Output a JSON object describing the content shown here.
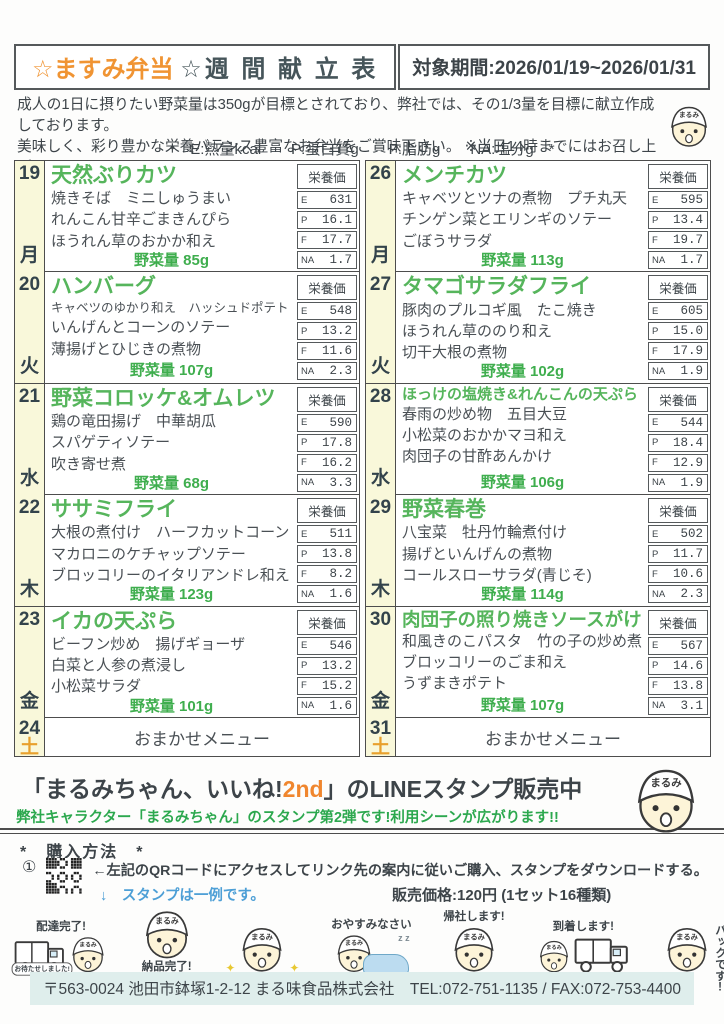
{
  "header": {
    "title_brand": "☆ますみ弁当",
    "title_rest": "☆週 間 献 立 表",
    "period": "対象期間:2026/01/19~2026/01/31"
  },
  "intro": {
    "line1": "成人の1日に摂りたい野菜量は350gが目標とされており、弊社では、その1/3量を目標に献立作成しております。",
    "line2": "美味しく、彩り豊かな栄養バランス豊富なお弁当をご賞味下さい。 ※当日14時までにはお召し上がりください。"
  },
  "legend": "*　E:熱量kcal　　P:蛋白質g　　F:脂肪g　　NA:塩分g　*",
  "labels": {
    "nutrition_header": "栄養価",
    "veg_label": "野菜量",
    "e": "E",
    "p": "P",
    "f": "F",
    "na": "NA"
  },
  "days": {
    "left": [
      {
        "date": "19",
        "dow": "月",
        "title": "天然ぶりカツ",
        "items": [
          "焼きそば　ミニしゅうまい",
          "れんこん甘辛ごまきんぴら",
          "ほうれん草のおかか和え"
        ],
        "veg": "85g",
        "e": "631",
        "p": "16.1",
        "f": "17.7",
        "na": "1.7"
      },
      {
        "date": "20",
        "dow": "火",
        "title": "ハンバーグ",
        "items": [
          "キャベツのゆかり和え　ハッシュドポテト",
          "いんげんとコーンのソテー",
          "薄揚げとひじきの煮物"
        ],
        "veg": "107g",
        "e": "548",
        "p": "13.2",
        "f": "11.6",
        "na": "2.3"
      },
      {
        "date": "21",
        "dow": "水",
        "title": "野菜コロッケ&オムレツ",
        "items": [
          "鶏の竜田揚げ　中華胡瓜",
          "スパゲティソテー",
          "吹き寄せ煮"
        ],
        "veg": "68g",
        "e": "590",
        "p": "17.8",
        "f": "16.2",
        "na": "3.3"
      },
      {
        "date": "22",
        "dow": "木",
        "title": "ササミフライ",
        "items": [
          "大根の煮付け　ハーフカットコーン",
          "マカロニのケチャップソテー",
          "ブロッコリーのイタリアンドレ和え"
        ],
        "veg": "123g",
        "e": "511",
        "p": "13.8",
        "f": "8.2",
        "na": "1.6"
      },
      {
        "date": "23",
        "dow": "金",
        "title": "イカの天ぷら",
        "items": [
          "ビーフン炒め　揚げギョーザ",
          "白菜と人参の煮浸し",
          "小松菜サラダ"
        ],
        "veg": "101g",
        "e": "546",
        "p": "13.2",
        "f": "15.2",
        "na": "1.6"
      },
      {
        "date": "24",
        "dow": "土",
        "omakase": "おまかせメニュー"
      }
    ],
    "right": [
      {
        "date": "26",
        "dow": "月",
        "title": "メンチカツ",
        "items": [
          "キャベツとツナの煮物　プチ丸天",
          "チンゲン菜とエリンギのソテー",
          "ごぼうサラダ"
        ],
        "veg": "113g",
        "e": "595",
        "p": "13.4",
        "f": "19.7",
        "na": "1.7"
      },
      {
        "date": "27",
        "dow": "火",
        "title": "タマゴサラダフライ",
        "items": [
          "豚肉のプルコギ風　たこ焼き",
          "ほうれん草ののり和え",
          "切干大根の煮物"
        ],
        "veg": "102g",
        "e": "605",
        "p": "15.0",
        "f": "17.9",
        "na": "1.9"
      },
      {
        "date": "28",
        "dow": "水",
        "title": "ほっけの塩焼き&れんこんの天ぷら",
        "items": [
          "春雨の炒め物　五目大豆",
          "小松菜のおかかマヨ和え",
          "肉団子の甘酢あんかけ"
        ],
        "veg": "106g",
        "e": "544",
        "p": "18.4",
        "f": "12.9",
        "na": "1.9"
      },
      {
        "date": "29",
        "dow": "木",
        "title": "野菜春巻",
        "items": [
          "八宝菜　牡丹竹輪煮付け",
          "揚げといんげんの煮物",
          "コールスローサラダ(青じそ)"
        ],
        "veg": "114g",
        "e": "502",
        "p": "11.7",
        "f": "10.6",
        "na": "2.3"
      },
      {
        "date": "30",
        "dow": "金",
        "title": "肉団子の照り焼きソースがけ",
        "items": [
          "和風きのこパスタ　竹の子の炒め煮",
          "ブロッコリーのごま和え",
          "うずまきポテト"
        ],
        "veg": "107g",
        "e": "567",
        "p": "14.6",
        "f": "13.8",
        "na": "3.1"
      },
      {
        "date": "31",
        "dow": "土",
        "omakase": "おまかせメニュー"
      }
    ]
  },
  "promo": {
    "title_pre": "「まるみちゃん、いいね!",
    "title_accent": "2nd",
    "title_post": "」のLINEスタンプ販売中",
    "subtitle": "弊社キャラクター「まるみちゃん」のスタンプ第2弾です!利用シーンが広がります!!",
    "purchase_heading": "*　購入方法　*",
    "step_number": "①",
    "step_text": "←左記のQRコードにアクセスしてリンク先の案内に従いご購入、スタンプをダウンロードする。",
    "example_note": "↓　スタンプは一例です。",
    "price": "販売価格:120円 (1セット16種類)",
    "mascot_cap_text": "まるみ",
    "stamps": [
      {
        "label": "配達完了!",
        "bubble": "お待たせしました!",
        "type": "truck",
        "label_pos": "top"
      },
      {
        "label": "納品完了!",
        "type": "cheer",
        "label_pos": "bottom"
      },
      {
        "label": "",
        "type": "sparkle",
        "label_pos": "top"
      },
      {
        "label": "おやすみなさい",
        "type": "sleep",
        "label_pos": "top"
      },
      {
        "label": "帰社します!",
        "type": "wave",
        "label_pos": "top"
      },
      {
        "label": "到着します!",
        "type": "truck2",
        "label_pos": "top"
      },
      {
        "label": "パックです!",
        "type": "pack",
        "label_pos": "right"
      }
    ]
  },
  "footer": "〒563-0024 池田市鉢塚1-2-12 まる味食品株式会社　TEL:072-751-1135 / FAX:072-753-4400",
  "colors": {
    "brand_orange": "#f09433",
    "menu_green": "#56b55c",
    "veg_green": "#3fae4e",
    "promo_green": "#2ca84e",
    "note_blue": "#4d9fd6",
    "saturday_orange": "#e8a02c",
    "day_cell_bg": "#f9f8da",
    "footer_bg": "#dfeeec"
  }
}
